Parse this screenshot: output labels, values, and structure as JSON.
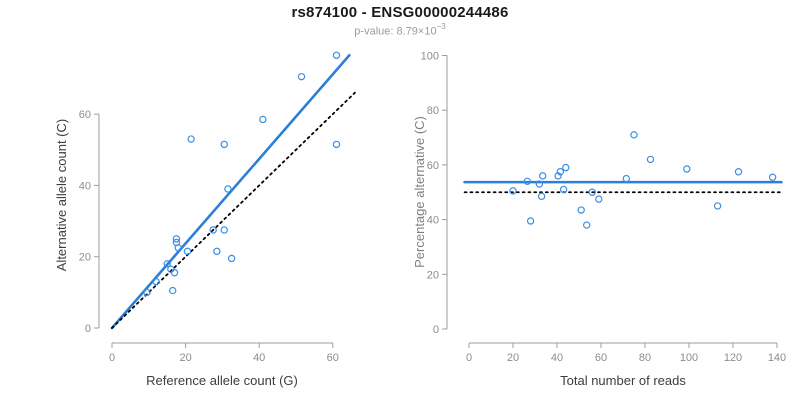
{
  "header": {
    "title": "rs874100 - ENSG00000244486",
    "pvalue_prefix": "p-value: 8.79×10",
    "pvalue_exponent": "−3"
  },
  "colors": {
    "point_blue": "#3a8ee6",
    "line_blue": "#2b7fd9",
    "dotted_black": "#000000",
    "axis_gray": "#9c9c9c",
    "tick_label_gray": "#8c8c8c",
    "title_black": "#1a1a1a",
    "subtitle_gray": "#9b9b9b"
  },
  "chart_data": [
    {
      "type": "scatter",
      "panel": "left",
      "xlabel": "Reference allele count (G)",
      "ylabel": "Alternative allele count (C)",
      "xlabel_color": "#3d3d3d",
      "ylabel_color": "#3d3d3d",
      "xlim": [
        0,
        66
      ],
      "ylim": [
        0,
        78
      ],
      "xticks": [
        0,
        20,
        40,
        60
      ],
      "yticks": [
        0,
        20,
        40,
        60
      ],
      "grid": false,
      "points": [
        [
          61,
          76.5
        ],
        [
          51.5,
          70.5
        ],
        [
          41,
          58.5
        ],
        [
          21.5,
          53
        ],
        [
          30.5,
          51.5
        ],
        [
          61,
          51.5
        ],
        [
          31.5,
          39
        ],
        [
          27.5,
          27.5
        ],
        [
          30.5,
          27.5
        ],
        [
          17.5,
          25
        ],
        [
          17.5,
          24
        ],
        [
          18,
          22.5
        ],
        [
          20.5,
          21.5
        ],
        [
          28.5,
          21.5
        ],
        [
          32.5,
          19.5
        ],
        [
          15,
          18
        ],
        [
          16,
          16.5
        ],
        [
          17,
          15.5
        ],
        [
          12,
          13
        ],
        [
          16.5,
          10.5
        ],
        [
          9.5,
          10
        ]
      ],
      "lines": [
        {
          "name": "fit-line",
          "x1": 0,
          "y1": 0,
          "x2": 64.5,
          "y2": 76.5,
          "dashed": false,
          "color_key": "line_blue",
          "width": 2.6
        },
        {
          "name": "identity-line",
          "x1": 0,
          "y1": 0,
          "x2": 66,
          "y2": 66,
          "dashed": true,
          "color_key": "dotted_black",
          "width": 1.8
        }
      ]
    },
    {
      "type": "scatter",
      "panel": "right",
      "xlabel": "Total number of reads",
      "ylabel": "Percentage alternative (C)",
      "xlabel_color": "#3d3d3d",
      "ylabel_color": "#818181",
      "xlim": [
        0,
        142
      ],
      "ylim": [
        0,
        100
      ],
      "xticks": [
        0,
        20,
        40,
        60,
        80,
        100,
        120,
        140
      ],
      "yticks": [
        0,
        20,
        40,
        60,
        80,
        100
      ],
      "grid": false,
      "points": [
        [
          138,
          55.5
        ],
        [
          122.5,
          57.5
        ],
        [
          99,
          58.5
        ],
        [
          75,
          71
        ],
        [
          82.5,
          62
        ],
        [
          113,
          45
        ],
        [
          71.5,
          55
        ],
        [
          56,
          50
        ],
        [
          59,
          47.5
        ],
        [
          44,
          59
        ],
        [
          41.5,
          57.5
        ],
        [
          40.5,
          56
        ],
        [
          43,
          51
        ],
        [
          51,
          43.5
        ],
        [
          53.5,
          38
        ],
        [
          33.5,
          56
        ],
        [
          32,
          53
        ],
        [
          33,
          48.5
        ],
        [
          26.5,
          54
        ],
        [
          28,
          39.5
        ],
        [
          20,
          50.5
        ]
      ],
      "lines": [
        {
          "name": "mean-line",
          "x1": -2,
          "y1": 53.7,
          "x2": 142,
          "y2": 53.7,
          "dashed": false,
          "color_key": "line_blue",
          "width": 2.6
        },
        {
          "name": "null-line",
          "x1": -2,
          "y1": 50,
          "x2": 142,
          "y2": 50,
          "dashed": true,
          "color_key": "dotted_black",
          "width": 1.8
        }
      ]
    }
  ]
}
